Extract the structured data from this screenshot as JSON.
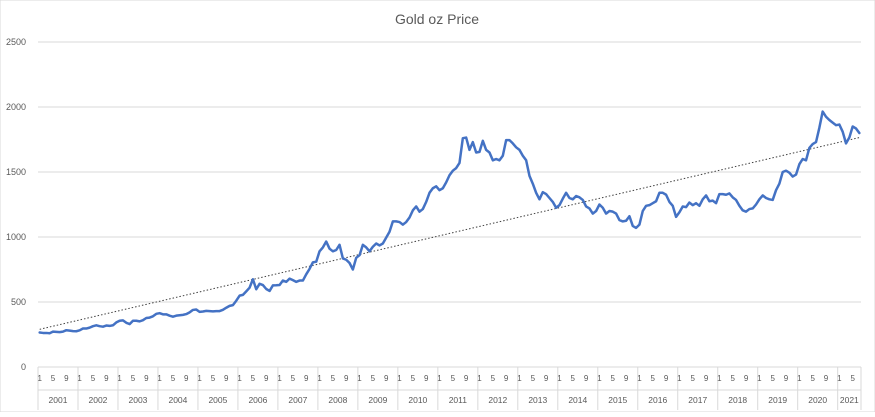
{
  "chart_data": {
    "type": "line",
    "title": "Gold oz Price",
    "xlabel": "",
    "ylabel": "",
    "ylim": [
      0,
      2500
    ],
    "yticks": [
      0,
      500,
      1000,
      1500,
      2000,
      2500
    ],
    "grid": "horizontal",
    "legend": "none",
    "years": [
      "2001",
      "2002",
      "2003",
      "2004",
      "2005",
      "2006",
      "2007",
      "2008",
      "2009",
      "2010",
      "2011",
      "2012",
      "2013",
      "2014",
      "2015",
      "2016",
      "2017",
      "2018",
      "2019",
      "2020",
      "2021"
    ],
    "month_tick_labels": [
      "1",
      "5",
      "9"
    ],
    "last_year_month_tick_labels": [
      "1",
      "5"
    ],
    "series": [
      {
        "color": "#4472c4",
        "values": [
          265,
          262,
          262,
          260,
          272,
          270,
          268,
          272,
          283,
          280,
          276,
          275,
          282,
          296,
          296,
          303,
          314,
          321,
          314,
          310,
          319,
          316,
          321,
          343,
          356,
          359,
          340,
          330,
          356,
          356,
          351,
          360,
          377,
          380,
          390,
          409,
          414,
          405,
          405,
          395,
          387,
          395,
          398,
          401,
          407,
          420,
          439,
          442,
          424,
          427,
          432,
          430,
          428,
          430,
          430,
          440,
          456,
          470,
          476,
          510,
          549,
          555,
          582,
          610,
          675,
          598,
          640,
          630,
          600,
          585,
          628,
          629,
          631,
          665,
          655,
          680,
          668,
          655,
          665,
          665,
          713,
          755,
          805,
          810,
          890,
          920,
          965,
          910,
          890,
          900,
          940,
          835,
          825,
          800,
          750,
          840,
          860,
          940,
          920,
          890,
          925,
          950,
          935,
          950,
          995,
          1040,
          1120,
          1120,
          1115,
          1095,
          1115,
          1150,
          1205,
          1235,
          1195,
          1215,
          1270,
          1340,
          1375,
          1390,
          1360,
          1375,
          1420,
          1475,
          1510,
          1530,
          1570,
          1760,
          1765,
          1670,
          1730,
          1650,
          1655,
          1740,
          1670,
          1650,
          1590,
          1600,
          1590,
          1625,
          1745,
          1745,
          1720,
          1690,
          1670,
          1625,
          1590,
          1470,
          1410,
          1340,
          1290,
          1345,
          1330,
          1300,
          1270,
          1225,
          1245,
          1295,
          1340,
          1300,
          1290,
          1315,
          1305,
          1285,
          1235,
          1220,
          1180,
          1200,
          1250,
          1225,
          1180,
          1200,
          1195,
          1180,
          1130,
          1120,
          1125,
          1160,
          1085,
          1070,
          1095,
          1200,
          1240,
          1245,
          1260,
          1275,
          1340,
          1340,
          1325,
          1270,
          1240,
          1155,
          1190,
          1235,
          1230,
          1265,
          1245,
          1260,
          1240,
          1290,
          1320,
          1275,
          1280,
          1260,
          1330,
          1330,
          1325,
          1335,
          1305,
          1285,
          1240,
          1205,
          1195,
          1215,
          1220,
          1250,
          1290,
          1320,
          1300,
          1290,
          1285,
          1360,
          1410,
          1500,
          1510,
          1495,
          1465,
          1480,
          1560,
          1600,
          1590,
          1685,
          1715,
          1730,
          1840,
          1965,
          1925,
          1900,
          1880,
          1860,
          1865,
          1810,
          1720,
          1765,
          1850,
          1835,
          1800
        ]
      }
    ],
    "trendline": {
      "style": "dotted",
      "start": 290,
      "end": 1765
    }
  }
}
